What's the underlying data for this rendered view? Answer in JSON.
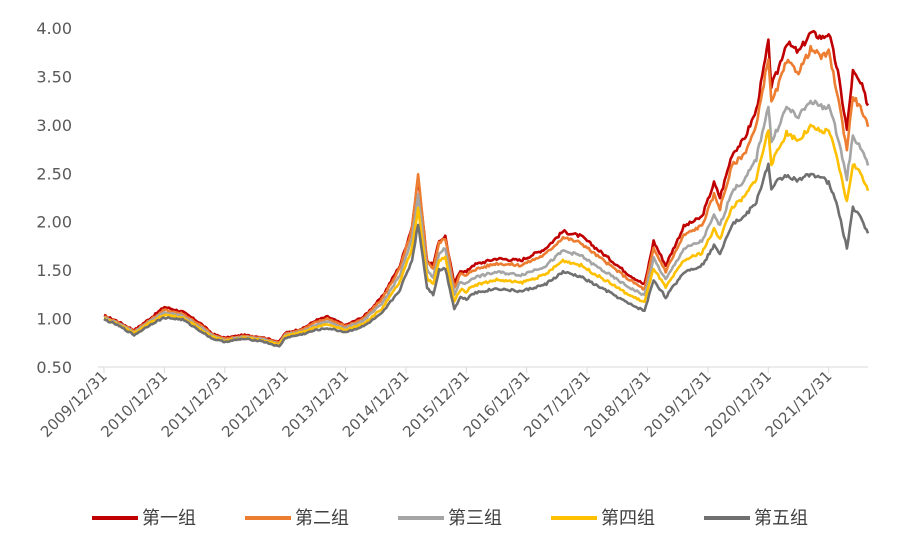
{
  "chart_data": {
    "type": "line",
    "title": "",
    "xlabel": "",
    "ylabel": "",
    "ylim": [
      0.5,
      4.0
    ],
    "y_ticks": [
      "0.50",
      "1.00",
      "1.50",
      "2.00",
      "2.50",
      "3.00",
      "3.50",
      "4.00"
    ],
    "x_ticks": [
      "2009/12/31",
      "2010/12/31",
      "2011/12/31",
      "2012/12/31",
      "2013/12/31",
      "2014/12/31",
      "2015/12/31",
      "2016/12/31",
      "2017/12/31",
      "2018/12/31",
      "2019/12/31",
      "2020/12/31",
      "2021/12/31"
    ],
    "x_range": [
      2009.9,
      2022.65
    ],
    "grid": false,
    "legend_position": "bottom",
    "series": [
      {
        "name": "第一组",
        "color": "#C00000",
        "x": [
          2010.0,
          2010.2,
          2010.5,
          2010.8,
          2011.0,
          2011.3,
          2011.6,
          2011.8,
          2012.0,
          2012.3,
          2012.6,
          2012.9,
          2013.0,
          2013.3,
          2013.5,
          2013.7,
          2014.0,
          2014.3,
          2014.6,
          2014.9,
          2015.1,
          2015.2,
          2015.35,
          2015.45,
          2015.55,
          2015.65,
          2015.8,
          2015.9,
          2016.0,
          2016.1,
          2016.5,
          2016.9,
          2017.3,
          2017.6,
          2017.9,
          2018.1,
          2018.4,
          2018.7,
          2018.95,
          2019.1,
          2019.3,
          2019.6,
          2019.9,
          2020.1,
          2020.2,
          2020.4,
          2020.6,
          2020.8,
          2021.0,
          2021.05,
          2021.15,
          2021.3,
          2021.5,
          2021.7,
          2021.9,
          2022.0,
          2022.15,
          2022.3,
          2022.4,
          2022.55,
          2022.65
        ],
        "y": [
          1.03,
          0.98,
          0.88,
          1.02,
          1.12,
          1.07,
          0.95,
          0.84,
          0.8,
          0.83,
          0.81,
          0.76,
          0.85,
          0.9,
          0.98,
          1.02,
          0.93,
          1.02,
          1.22,
          1.55,
          1.95,
          2.45,
          1.6,
          1.55,
          1.8,
          1.85,
          1.35,
          1.5,
          1.48,
          1.55,
          1.62,
          1.6,
          1.72,
          1.9,
          1.85,
          1.75,
          1.6,
          1.45,
          1.35,
          1.8,
          1.55,
          1.95,
          2.05,
          2.4,
          2.25,
          2.7,
          2.85,
          3.15,
          3.85,
          3.4,
          3.55,
          3.85,
          3.75,
          3.95,
          3.9,
          3.95,
          3.55,
          2.95,
          3.55,
          3.4,
          3.2
        ]
      },
      {
        "name": "第二组",
        "color": "#ED7D31",
        "x": [
          2010.0,
          2010.2,
          2010.5,
          2010.8,
          2011.0,
          2011.3,
          2011.6,
          2011.8,
          2012.0,
          2012.3,
          2012.6,
          2012.9,
          2013.0,
          2013.3,
          2013.5,
          2013.7,
          2014.0,
          2014.3,
          2014.6,
          2014.9,
          2015.1,
          2015.2,
          2015.35,
          2015.45,
          2015.55,
          2015.65,
          2015.8,
          2015.9,
          2016.0,
          2016.1,
          2016.5,
          2016.9,
          2017.3,
          2017.6,
          2017.9,
          2018.1,
          2018.4,
          2018.7,
          2018.95,
          2019.1,
          2019.3,
          2019.6,
          2019.9,
          2020.1,
          2020.2,
          2020.4,
          2020.6,
          2020.8,
          2021.0,
          2021.05,
          2021.15,
          2021.3,
          2021.5,
          2021.7,
          2021.9,
          2022.0,
          2022.15,
          2022.3,
          2022.4,
          2022.55,
          2022.65
        ],
        "y": [
          1.02,
          0.97,
          0.87,
          1.0,
          1.09,
          1.05,
          0.93,
          0.83,
          0.79,
          0.82,
          0.8,
          0.75,
          0.84,
          0.89,
          0.96,
          1.0,
          0.92,
          1.0,
          1.2,
          1.52,
          1.92,
          2.48,
          1.58,
          1.52,
          1.78,
          1.83,
          1.32,
          1.46,
          1.44,
          1.5,
          1.57,
          1.55,
          1.66,
          1.84,
          1.78,
          1.68,
          1.54,
          1.4,
          1.3,
          1.72,
          1.49,
          1.86,
          1.96,
          2.28,
          2.14,
          2.58,
          2.7,
          2.98,
          3.7,
          3.22,
          3.38,
          3.65,
          3.55,
          3.78,
          3.7,
          3.75,
          3.3,
          2.75,
          3.3,
          3.15,
          2.98
        ]
      },
      {
        "name": "第三组",
        "color": "#A5A5A5",
        "x": [
          2010.0,
          2010.2,
          2010.5,
          2010.8,
          2011.0,
          2011.3,
          2011.6,
          2011.8,
          2012.0,
          2012.3,
          2012.6,
          2012.9,
          2013.0,
          2013.3,
          2013.5,
          2013.7,
          2014.0,
          2014.3,
          2014.6,
          2014.9,
          2015.1,
          2015.2,
          2015.35,
          2015.45,
          2015.55,
          2015.65,
          2015.8,
          2015.9,
          2016.0,
          2016.1,
          2016.5,
          2016.9,
          2017.3,
          2017.6,
          2017.9,
          2018.1,
          2018.4,
          2018.7,
          2018.95,
          2019.1,
          2019.3,
          2019.6,
          2019.9,
          2020.1,
          2020.2,
          2020.4,
          2020.6,
          2020.8,
          2021.0,
          2021.05,
          2021.15,
          2021.3,
          2021.5,
          2021.7,
          2021.9,
          2022.0,
          2022.15,
          2022.3,
          2022.4,
          2022.55,
          2022.65
        ],
        "y": [
          1.01,
          0.96,
          0.86,
          0.99,
          1.06,
          1.03,
          0.91,
          0.82,
          0.78,
          0.81,
          0.79,
          0.74,
          0.83,
          0.87,
          0.93,
          0.97,
          0.9,
          0.98,
          1.15,
          1.45,
          1.82,
          2.28,
          1.5,
          1.42,
          1.68,
          1.72,
          1.25,
          1.38,
          1.36,
          1.42,
          1.48,
          1.45,
          1.54,
          1.7,
          1.65,
          1.56,
          1.44,
          1.32,
          1.24,
          1.62,
          1.4,
          1.72,
          1.8,
          2.06,
          1.96,
          2.32,
          2.42,
          2.65,
          3.2,
          2.82,
          2.96,
          3.18,
          3.08,
          3.25,
          3.18,
          3.2,
          2.88,
          2.45,
          2.88,
          2.75,
          2.58
        ]
      },
      {
        "name": "第四组",
        "color": "#FFC000",
        "x": [
          2010.0,
          2010.2,
          2010.5,
          2010.8,
          2011.0,
          2011.3,
          2011.6,
          2011.8,
          2012.0,
          2012.3,
          2012.6,
          2012.9,
          2013.0,
          2013.3,
          2013.5,
          2013.7,
          2014.0,
          2014.3,
          2014.6,
          2014.9,
          2015.1,
          2015.2,
          2015.35,
          2015.45,
          2015.55,
          2015.65,
          2015.8,
          2015.9,
          2016.0,
          2016.1,
          2016.5,
          2016.9,
          2017.3,
          2017.6,
          2017.9,
          2018.1,
          2018.4,
          2018.7,
          2018.95,
          2019.1,
          2019.3,
          2019.6,
          2019.9,
          2020.1,
          2020.2,
          2020.4,
          2020.6,
          2020.8,
          2021.0,
          2021.05,
          2021.15,
          2021.3,
          2021.5,
          2021.7,
          2021.9,
          2022.0,
          2022.15,
          2022.3,
          2022.4,
          2022.55,
          2022.65
        ],
        "y": [
          1.0,
          0.95,
          0.85,
          0.97,
          1.04,
          1.01,
          0.89,
          0.81,
          0.77,
          0.8,
          0.78,
          0.73,
          0.82,
          0.86,
          0.91,
          0.94,
          0.88,
          0.95,
          1.1,
          1.38,
          1.72,
          2.15,
          1.42,
          1.35,
          1.6,
          1.63,
          1.18,
          1.3,
          1.28,
          1.34,
          1.4,
          1.37,
          1.45,
          1.6,
          1.55,
          1.47,
          1.36,
          1.24,
          1.17,
          1.52,
          1.32,
          1.6,
          1.68,
          1.92,
          1.83,
          2.15,
          2.25,
          2.45,
          2.95,
          2.6,
          2.72,
          2.92,
          2.84,
          2.98,
          2.92,
          2.95,
          2.62,
          2.2,
          2.6,
          2.48,
          2.32
        ]
      },
      {
        "name": "第五组",
        "color": "#707070",
        "x": [
          2010.0,
          2010.2,
          2010.5,
          2010.8,
          2011.0,
          2011.3,
          2011.6,
          2011.8,
          2012.0,
          2012.3,
          2012.6,
          2012.9,
          2013.0,
          2013.3,
          2013.5,
          2013.7,
          2014.0,
          2014.3,
          2014.6,
          2014.9,
          2015.1,
          2015.2,
          2015.35,
          2015.45,
          2015.55,
          2015.65,
          2015.8,
          2015.9,
          2016.0,
          2016.1,
          2016.5,
          2016.9,
          2017.3,
          2017.6,
          2017.9,
          2018.1,
          2018.4,
          2018.7,
          2018.95,
          2019.1,
          2019.3,
          2019.6,
          2019.9,
          2020.1,
          2020.2,
          2020.4,
          2020.6,
          2020.8,
          2021.0,
          2021.05,
          2021.15,
          2021.3,
          2021.5,
          2021.7,
          2021.9,
          2022.0,
          2022.15,
          2022.3,
          2022.4,
          2022.55,
          2022.65
        ],
        "y": [
          0.99,
          0.94,
          0.83,
          0.95,
          1.01,
          0.99,
          0.87,
          0.79,
          0.76,
          0.79,
          0.77,
          0.71,
          0.8,
          0.84,
          0.88,
          0.9,
          0.86,
          0.92,
          1.05,
          1.3,
          1.6,
          1.98,
          1.32,
          1.25,
          1.5,
          1.52,
          1.1,
          1.22,
          1.2,
          1.26,
          1.31,
          1.28,
          1.35,
          1.48,
          1.43,
          1.36,
          1.26,
          1.15,
          1.08,
          1.4,
          1.22,
          1.48,
          1.55,
          1.75,
          1.68,
          1.98,
          2.05,
          2.2,
          2.6,
          2.32,
          2.42,
          2.48,
          2.42,
          2.5,
          2.45,
          2.4,
          2.15,
          1.72,
          2.15,
          2.02,
          1.88
        ]
      }
    ]
  }
}
